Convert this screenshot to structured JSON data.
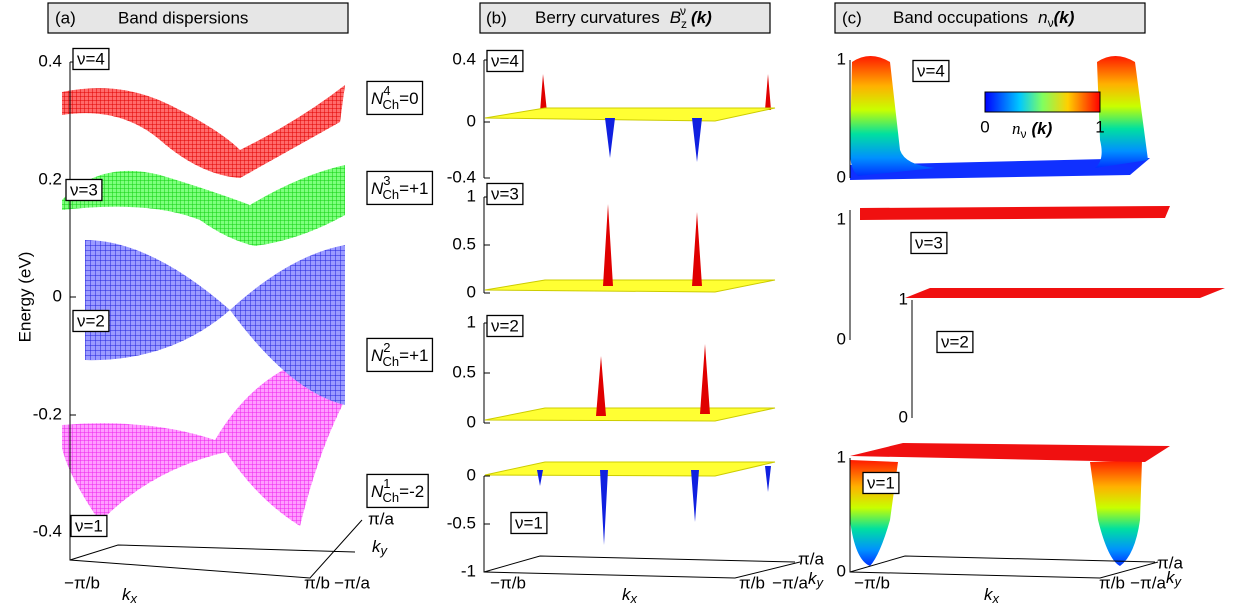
{
  "panel_a": {
    "label": "(a)",
    "title": "Band dispersions",
    "y_axis_label": "Energy (eV)",
    "y_ticks": [
      "0.4",
      "0.2",
      "0",
      "-0.2",
      "-0.4"
    ],
    "band_labels": [
      "ν=4",
      "ν=3",
      "ν=2",
      "ν=1"
    ],
    "chern_numbers": [
      {
        "symbol": "N",
        "band": "4",
        "subscript": "Ch",
        "value": "=0"
      },
      {
        "symbol": "N",
        "band": "3",
        "subscript": "Ch",
        "value": "=+1"
      },
      {
        "symbol": "N",
        "band": "2",
        "subscript": "Ch",
        "value": "=+1"
      },
      {
        "symbol": "N",
        "band": "1",
        "subscript": "Ch",
        "value": "=-2"
      }
    ],
    "x_axis": {
      "symbol": "k",
      "subscript": "x",
      "min": "−π/b",
      "max": "π/b"
    },
    "y_axis": {
      "symbol": "k",
      "subscript": "y",
      "min": "−π/a",
      "max": "π/a"
    }
  },
  "panel_b": {
    "label": "(b)",
    "title": "Berry curvatures",
    "symbol": "B",
    "subscript": "z",
    "superscript": "ν",
    "argument": "(k)",
    "subplots": [
      {
        "band_label": "ν=4",
        "ticks": [
          "0.4",
          "0",
          "-0.4"
        ]
      },
      {
        "band_label": "ν=3",
        "ticks": [
          "1",
          "0.5",
          "0"
        ]
      },
      {
        "band_label": "ν=2",
        "ticks": [
          "1",
          "0.5",
          "0"
        ]
      },
      {
        "band_label": "ν=1",
        "ticks": [
          "0",
          "-0.5",
          "-1"
        ]
      }
    ],
    "x_axis": {
      "symbol": "k",
      "subscript": "x",
      "min": "−π/b",
      "max": "π/b"
    },
    "y_axis": {
      "symbol": "k",
      "subscript": "y",
      "min": "−π/a",
      "max": "π/a"
    }
  },
  "panel_c": {
    "label": "(c)",
    "title": "Band occupations",
    "symbol": "n",
    "subscript": "ν",
    "argument": "(k)",
    "colorbar": {
      "min": "0",
      "max": "1",
      "symbol": "n",
      "subscript": "ν",
      "argument": "(k)"
    },
    "subplots": [
      {
        "band_label": "ν=4",
        "ticks": [
          "1",
          "0"
        ]
      },
      {
        "band_label": "ν=3",
        "ticks": [
          "1",
          "0"
        ]
      },
      {
        "band_label": "ν=2",
        "ticks": [
          "1",
          "0"
        ]
      },
      {
        "band_label": "ν=1",
        "ticks": [
          "1",
          "0"
        ]
      }
    ],
    "x_axis": {
      "symbol": "k",
      "subscript": "x",
      "min": "−π/b",
      "max": "π/b"
    },
    "y_axis": {
      "symbol": "k",
      "subscript": "y",
      "min": "−π/a",
      "max": "π/a"
    }
  }
}
